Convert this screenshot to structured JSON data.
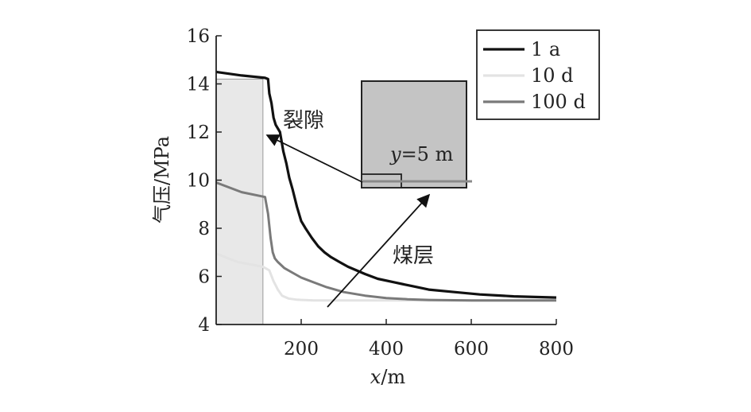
{
  "chart_data": {
    "type": "line",
    "xlabel_var": "x",
    "xlabel_unit": "/m",
    "ylabel": "气压/MPa",
    "xlim": [
      0,
      800
    ],
    "ylim": [
      4,
      16
    ],
    "xticks": [
      200,
      400,
      600,
      800
    ],
    "yticks": [
      4,
      6,
      8,
      10,
      12,
      14,
      16
    ],
    "grid": false,
    "legend_position": "top-right",
    "fracture_zone_x": [
      0,
      110
    ],
    "series": [
      {
        "name": "1 a",
        "color": "#111111",
        "points": [
          [
            0,
            14.5
          ],
          [
            60,
            14.35
          ],
          [
            115,
            14.25
          ],
          [
            122,
            14.2
          ],
          [
            125,
            13.6
          ],
          [
            130,
            13.2
          ],
          [
            135,
            12.6
          ],
          [
            140,
            12.3
          ],
          [
            150,
            12.0
          ],
          [
            158,
            11.2
          ],
          [
            165,
            10.7
          ],
          [
            172,
            10.1
          ],
          [
            180,
            9.6
          ],
          [
            190,
            8.9
          ],
          [
            200,
            8.3
          ],
          [
            210,
            8.0
          ],
          [
            225,
            7.6
          ],
          [
            240,
            7.25
          ],
          [
            255,
            7.0
          ],
          [
            270,
            6.8
          ],
          [
            290,
            6.6
          ],
          [
            310,
            6.4
          ],
          [
            330,
            6.25
          ],
          [
            350,
            6.1
          ],
          [
            380,
            5.9
          ],
          [
            420,
            5.75
          ],
          [
            460,
            5.6
          ],
          [
            500,
            5.45
          ],
          [
            560,
            5.35
          ],
          [
            620,
            5.25
          ],
          [
            700,
            5.17
          ],
          [
            800,
            5.12
          ]
        ]
      },
      {
        "name": "10 d",
        "color": "#e3e3e3",
        "points": [
          [
            0,
            6.95
          ],
          [
            50,
            6.6
          ],
          [
            110,
            6.4
          ],
          [
            125,
            6.25
          ],
          [
            135,
            5.8
          ],
          [
            145,
            5.45
          ],
          [
            155,
            5.2
          ],
          [
            170,
            5.08
          ],
          [
            190,
            5.03
          ],
          [
            230,
            5.0
          ],
          [
            300,
            5.0
          ],
          [
            500,
            5.0
          ],
          [
            800,
            5.0
          ]
        ]
      },
      {
        "name": "100 d",
        "color": "#7a7a7a",
        "points": [
          [
            0,
            9.9
          ],
          [
            60,
            9.5
          ],
          [
            115,
            9.3
          ],
          [
            122,
            8.6
          ],
          [
            128,
            7.6
          ],
          [
            133,
            7.0
          ],
          [
            138,
            6.75
          ],
          [
            145,
            6.6
          ],
          [
            160,
            6.35
          ],
          [
            180,
            6.15
          ],
          [
            200,
            5.95
          ],
          [
            230,
            5.75
          ],
          [
            260,
            5.55
          ],
          [
            300,
            5.35
          ],
          [
            350,
            5.2
          ],
          [
            400,
            5.1
          ],
          [
            450,
            5.05
          ],
          [
            500,
            5.02
          ],
          [
            600,
            5.0
          ],
          [
            800,
            5.0
          ]
        ]
      }
    ],
    "annotations": {
      "fracture": "裂隙",
      "coal_seam": "煤层",
      "inset_var": "y",
      "inset_val": "=5 m"
    }
  }
}
